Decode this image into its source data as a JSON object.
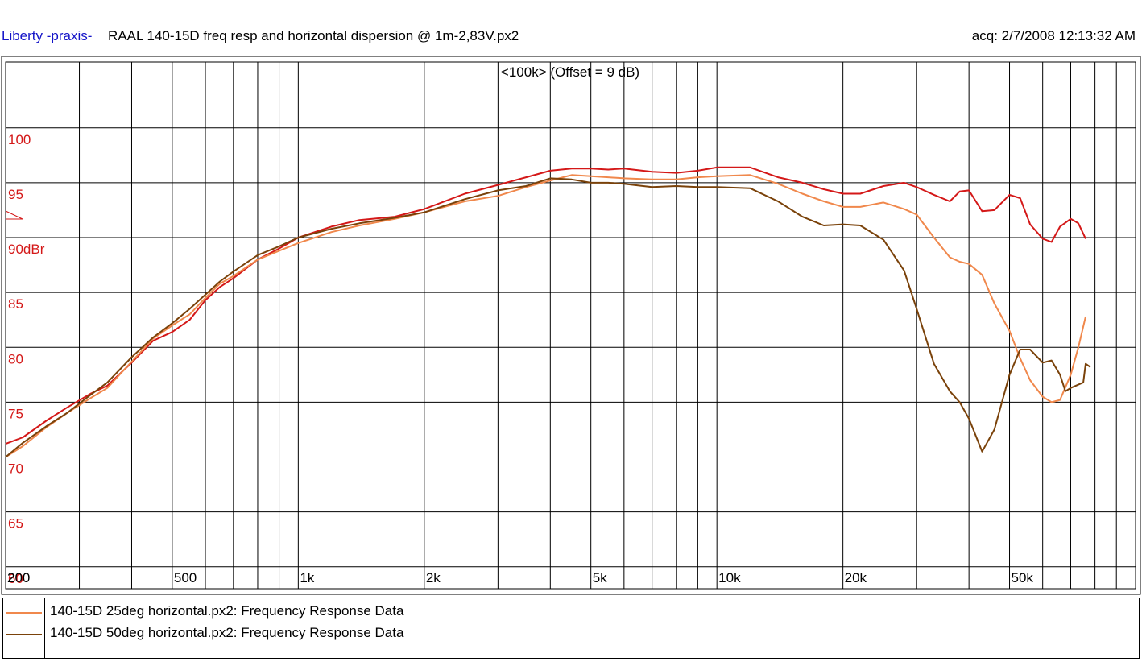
{
  "header": {
    "app_name": "Liberty -praxis-",
    "title": "RAAL 140-15D freq resp and horizontal dispersion @ 1m-2,83V.px2",
    "acquired": "acq: 2/7/2008 12:13:32 AM"
  },
  "chart_data": {
    "type": "line",
    "title": "RAAL 140-15D freq resp and horizontal dispersion @ 1m-2,83V.px2",
    "annotation": "<100k> (Offset = 9 dB)",
    "reference_label": "90dBr",
    "x_scale": "log",
    "xlim": [
      200,
      100000
    ],
    "ylim": [
      58,
      106
    ],
    "y_ticks": [
      {
        "value": 100,
        "label": "100"
      },
      {
        "value": 95,
        "label": "95"
      },
      {
        "value": 90,
        "label": "90dBr"
      },
      {
        "value": 85,
        "label": "85"
      },
      {
        "value": 80,
        "label": "80"
      },
      {
        "value": 75,
        "label": "75"
      },
      {
        "value": 70,
        "label": "70"
      },
      {
        "value": 65,
        "label": "65"
      },
      {
        "value": 60,
        "label": "60"
      }
    ],
    "x_ticks": [
      {
        "value": 200,
        "label": "200"
      },
      {
        "value": 500,
        "label": "500"
      },
      {
        "value": 1000,
        "label": "1k"
      },
      {
        "value": 2000,
        "label": "2k"
      },
      {
        "value": 5000,
        "label": "5k"
      },
      {
        "value": 10000,
        "label": "10k"
      },
      {
        "value": 20000,
        "label": "20k"
      },
      {
        "value": 50000,
        "label": "50k"
      }
    ],
    "grid": true,
    "legend_position": "bottom",
    "series": [
      {
        "color": "#d41818",
        "points": [
          [
            200,
            71.2
          ],
          [
            220,
            71.8
          ],
          [
            250,
            73.3
          ],
          [
            280,
            74.5
          ],
          [
            320,
            75.8
          ],
          [
            350,
            76.5
          ],
          [
            400,
            78.6
          ],
          [
            450,
            80.6
          ],
          [
            500,
            81.4
          ],
          [
            550,
            82.5
          ],
          [
            600,
            84.3
          ],
          [
            650,
            85.5
          ],
          [
            700,
            86.3
          ],
          [
            800,
            88.0
          ],
          [
            900,
            89.0
          ],
          [
            1000,
            90.0
          ],
          [
            1200,
            91.0
          ],
          [
            1400,
            91.6
          ],
          [
            1700,
            91.9
          ],
          [
            2000,
            92.6
          ],
          [
            2500,
            94.0
          ],
          [
            3000,
            94.8
          ],
          [
            3500,
            95.5
          ],
          [
            4000,
            96.1
          ],
          [
            4500,
            96.3
          ],
          [
            5000,
            96.3
          ],
          [
            5500,
            96.2
          ],
          [
            6000,
            96.3
          ],
          [
            7000,
            96.0
          ],
          [
            8000,
            95.9
          ],
          [
            9000,
            96.1
          ],
          [
            10000,
            96.4
          ],
          [
            12000,
            96.4
          ],
          [
            14000,
            95.5
          ],
          [
            16000,
            95.0
          ],
          [
            18000,
            94.4
          ],
          [
            20000,
            94.0
          ],
          [
            22000,
            94.0
          ],
          [
            25000,
            94.7
          ],
          [
            28000,
            95.0
          ],
          [
            30000,
            94.6
          ],
          [
            33000,
            93.9
          ],
          [
            36000,
            93.3
          ],
          [
            38000,
            94.2
          ],
          [
            40000,
            94.3
          ],
          [
            43000,
            92.4
          ],
          [
            46000,
            92.5
          ],
          [
            50000,
            93.9
          ],
          [
            53000,
            93.6
          ],
          [
            56000,
            91.2
          ],
          [
            60000,
            89.9
          ],
          [
            63000,
            89.6
          ],
          [
            66000,
            91.0
          ],
          [
            70000,
            91.7
          ],
          [
            73000,
            91.3
          ],
          [
            76000,
            89.9
          ]
        ]
      },
      {
        "name": "140-15D 25deg horizontal.px2:  Frequency Response Data",
        "color": "#f0884c",
        "points": [
          [
            200,
            70.0
          ],
          [
            220,
            71.0
          ],
          [
            250,
            72.7
          ],
          [
            280,
            74.0
          ],
          [
            320,
            75.4
          ],
          [
            350,
            76.3
          ],
          [
            400,
            78.7
          ],
          [
            450,
            80.8
          ],
          [
            500,
            82.0
          ],
          [
            550,
            83.0
          ],
          [
            600,
            84.5
          ],
          [
            650,
            85.8
          ],
          [
            700,
            86.5
          ],
          [
            800,
            88.0
          ],
          [
            900,
            88.8
          ],
          [
            1000,
            89.5
          ],
          [
            1200,
            90.5
          ],
          [
            1400,
            91.1
          ],
          [
            1700,
            91.7
          ],
          [
            2000,
            92.3
          ],
          [
            2500,
            93.3
          ],
          [
            3000,
            93.8
          ],
          [
            3500,
            94.6
          ],
          [
            4000,
            95.2
          ],
          [
            4500,
            95.7
          ],
          [
            5000,
            95.6
          ],
          [
            5500,
            95.5
          ],
          [
            6000,
            95.4
          ],
          [
            7000,
            95.3
          ],
          [
            8000,
            95.3
          ],
          [
            9000,
            95.5
          ],
          [
            10000,
            95.6
          ],
          [
            12000,
            95.7
          ],
          [
            14000,
            94.9
          ],
          [
            16000,
            94.0
          ],
          [
            18000,
            93.3
          ],
          [
            20000,
            92.8
          ],
          [
            22000,
            92.8
          ],
          [
            25000,
            93.2
          ],
          [
            28000,
            92.6
          ],
          [
            30000,
            92.1
          ],
          [
            33000,
            90.0
          ],
          [
            36000,
            88.2
          ],
          [
            38000,
            87.8
          ],
          [
            40000,
            87.6
          ],
          [
            43000,
            86.6
          ],
          [
            46000,
            84.0
          ],
          [
            50000,
            81.5
          ],
          [
            53000,
            79.0
          ],
          [
            56000,
            77.0
          ],
          [
            60000,
            75.5
          ],
          [
            63000,
            75.0
          ],
          [
            66000,
            75.2
          ],
          [
            70000,
            77.5
          ],
          [
            73000,
            80.0
          ],
          [
            76000,
            82.8
          ]
        ]
      },
      {
        "name": "140-15D 50deg horizontal.px2:  Frequency Response Data",
        "color": "#7a420a",
        "points": [
          [
            200,
            70.0
          ],
          [
            220,
            71.3
          ],
          [
            250,
            72.8
          ],
          [
            280,
            74.0
          ],
          [
            320,
            75.7
          ],
          [
            350,
            76.8
          ],
          [
            400,
            79.1
          ],
          [
            450,
            80.9
          ],
          [
            500,
            82.2
          ],
          [
            550,
            83.5
          ],
          [
            600,
            84.8
          ],
          [
            650,
            86.0
          ],
          [
            700,
            86.9
          ],
          [
            800,
            88.4
          ],
          [
            900,
            89.2
          ],
          [
            1000,
            90.0
          ],
          [
            1200,
            90.8
          ],
          [
            1400,
            91.3
          ],
          [
            1700,
            91.8
          ],
          [
            2000,
            92.3
          ],
          [
            2500,
            93.5
          ],
          [
            3000,
            94.3
          ],
          [
            3500,
            94.7
          ],
          [
            4000,
            95.4
          ],
          [
            4500,
            95.3
          ],
          [
            5000,
            95.0
          ],
          [
            5500,
            95.0
          ],
          [
            6000,
            94.9
          ],
          [
            7000,
            94.6
          ],
          [
            8000,
            94.7
          ],
          [
            9000,
            94.6
          ],
          [
            10000,
            94.6
          ],
          [
            12000,
            94.5
          ],
          [
            14000,
            93.3
          ],
          [
            16000,
            91.9
          ],
          [
            18000,
            91.1
          ],
          [
            20000,
            91.2
          ],
          [
            22000,
            91.1
          ],
          [
            25000,
            89.8
          ],
          [
            28000,
            87.0
          ],
          [
            30000,
            83.5
          ],
          [
            33000,
            78.5
          ],
          [
            36000,
            76.0
          ],
          [
            38000,
            75.0
          ],
          [
            40000,
            73.5
          ],
          [
            43000,
            70.5
          ],
          [
            46000,
            72.5
          ],
          [
            50000,
            77.5
          ],
          [
            53000,
            79.8
          ],
          [
            56000,
            79.8
          ],
          [
            60000,
            78.6
          ],
          [
            63000,
            78.8
          ],
          [
            66000,
            77.5
          ],
          [
            68000,
            76.0
          ],
          [
            70000,
            76.3
          ],
          [
            73000,
            76.6
          ],
          [
            75000,
            76.8
          ],
          [
            76000,
            78.5
          ],
          [
            78000,
            78.2
          ]
        ]
      }
    ]
  },
  "legend": {
    "items": [
      {
        "label": "140-15D 25deg horizontal.px2:  Frequency Response Data",
        "color": "#f0884c"
      },
      {
        "label": "140-15D 50deg horizontal.px2:  Frequency Response Data",
        "color": "#7a420a"
      }
    ]
  }
}
